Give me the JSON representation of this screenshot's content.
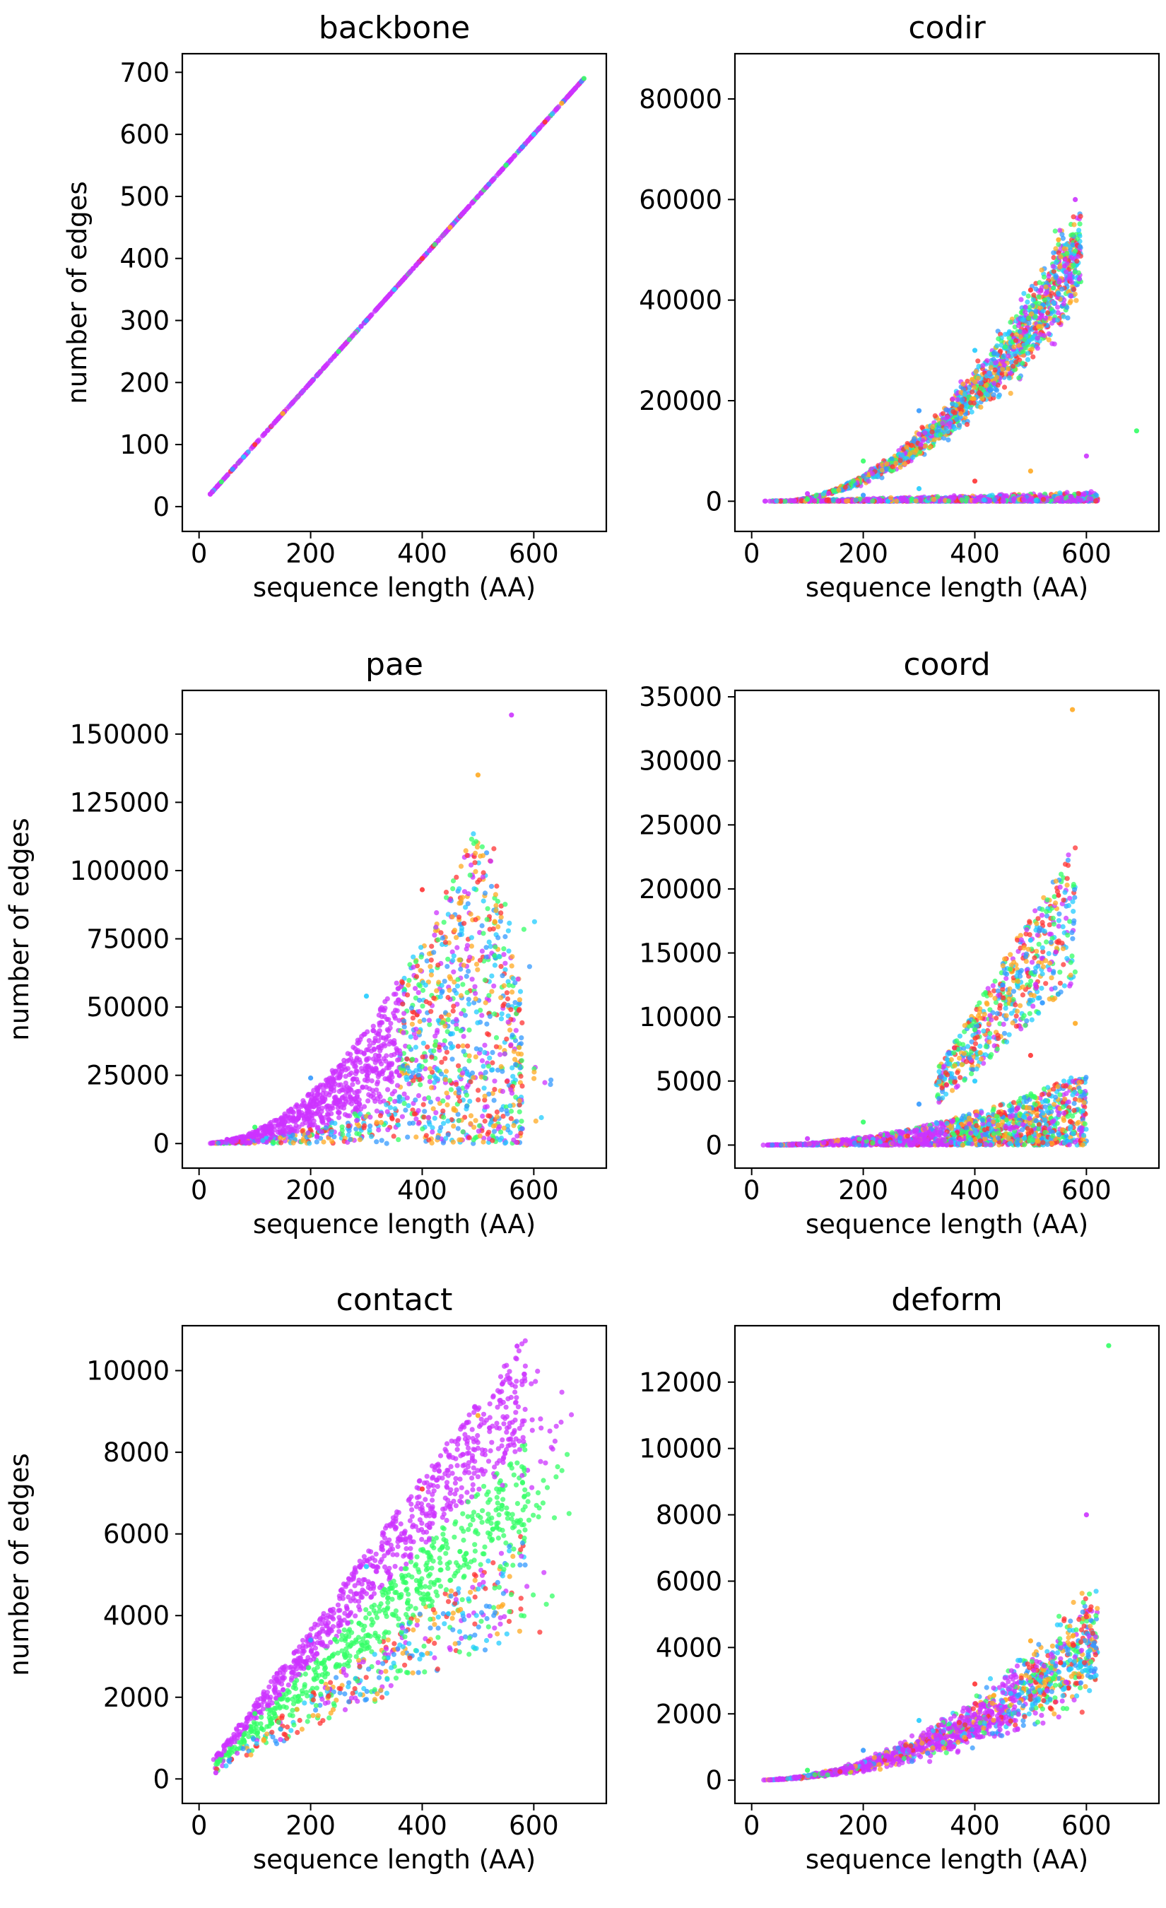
{
  "chart_data": [
    {
      "type": "scatter",
      "title": "backbone",
      "xlabel": "sequence length (AA)",
      "ylabel": "number of edges",
      "xlim": [
        -30,
        730
      ],
      "ylim": [
        -40,
        730
      ],
      "xticks": [
        0,
        200,
        400,
        600
      ],
      "yticks": [
        0,
        100,
        200,
        300,
        400,
        500,
        600,
        700
      ],
      "grid": false,
      "legend": "none",
      "colors": [
        "#cc33ff",
        "#33ff66",
        "#3399ff",
        "#22ccff",
        "#ff3333",
        "#ffaa22"
      ],
      "series": [
        {
          "x": [
            20,
            40,
            60,
            80,
            100,
            150,
            200,
            250,
            300,
            350,
            400,
            450,
            500,
            550,
            580,
            600,
            620,
            650,
            670,
            690
          ],
          "y": [
            20,
            40,
            60,
            80,
            100,
            150,
            200,
            250,
            300,
            350,
            400,
            450,
            500,
            550,
            580,
            600,
            620,
            650,
            670,
            690
          ]
        }
      ]
    },
    {
      "type": "scatter",
      "title": "codir",
      "xlabel": "sequence length (AA)",
      "ylabel": "",
      "xlim": [
        -30,
        730
      ],
      "ylim": [
        -6000,
        89000
      ],
      "xticks": [
        0,
        200,
        400,
        600
      ],
      "yticks": [
        0,
        20000,
        40000,
        60000,
        80000
      ],
      "grid": false,
      "legend": "none",
      "colors": [
        "#cc33ff",
        "#33ff66",
        "#3399ff",
        "#22ccff",
        "#ff3333",
        "#ffaa22"
      ],
      "series": [
        {
          "x": [
            100,
            200,
            300,
            400,
            500,
            550,
            580
          ],
          "y": [
            1500,
            8000,
            18000,
            30000,
            42000,
            52000,
            60000
          ]
        },
        {
          "x": [
            100,
            200,
            300,
            400,
            500,
            600,
            690
          ],
          "y": [
            400,
            1200,
            2500,
            4000,
            6000,
            9000,
            14000
          ]
        }
      ]
    },
    {
      "type": "scatter",
      "title": "pae",
      "xlabel": "sequence length (AA)",
      "ylabel": "number of edges",
      "xlim": [
        -30,
        730
      ],
      "ylim": [
        -9000,
        166000
      ],
      "xticks": [
        0,
        200,
        400,
        600
      ],
      "yticks": [
        0,
        25000,
        50000,
        75000,
        100000,
        125000,
        150000
      ],
      "grid": false,
      "legend": "none",
      "colors": [
        "#cc33ff",
        "#33ff66",
        "#3399ff",
        "#22ccff",
        "#ff3333",
        "#ffaa22"
      ],
      "series": [
        {
          "x": [
            50,
            100,
            200,
            300,
            400,
            500,
            560
          ],
          "y": [
            1500,
            6000,
            24000,
            54000,
            93000,
            135000,
            157000
          ]
        }
      ]
    },
    {
      "type": "scatter",
      "title": "coord",
      "xlabel": "sequence length (AA)",
      "ylabel": "",
      "xlim": [
        -30,
        730
      ],
      "ylim": [
        -1800,
        35500
      ],
      "xticks": [
        0,
        200,
        400,
        600
      ],
      "yticks": [
        0,
        5000,
        10000,
        15000,
        20000,
        25000,
        30000,
        35000
      ],
      "grid": false,
      "legend": "none",
      "colors": [
        "#cc33ff",
        "#33ff66",
        "#3399ff",
        "#22ccff",
        "#ff3333",
        "#ffaa22"
      ],
      "series": [
        {
          "x": [
            100,
            200,
            300,
            400,
            500,
            580
          ],
          "y": [
            500,
            1800,
            3200,
            5000,
            7000,
            9500
          ]
        },
        {
          "x": [
            400,
            450,
            500,
            550,
            575
          ],
          "y": [
            9000,
            12500,
            16000,
            19500,
            34000
          ]
        }
      ]
    },
    {
      "type": "scatter",
      "title": "contact",
      "xlabel": "sequence length (AA)",
      "ylabel": "number of edges",
      "xlim": [
        -30,
        730
      ],
      "ylim": [
        -600,
        11100
      ],
      "xticks": [
        0,
        200,
        400,
        600
      ],
      "yticks": [
        0,
        2000,
        4000,
        6000,
        8000,
        10000
      ],
      "grid": false,
      "legend": "none",
      "colors": [
        "#cc33ff",
        "#33ff66",
        "#3399ff",
        "#22ccff",
        "#ff3333",
        "#ffaa22"
      ],
      "series": [
        {
          "x": [
            30,
            100,
            200,
            300,
            400,
            500,
            570
          ],
          "y": [
            150,
            1600,
            3400,
            5200,
            7100,
            8900,
            10600
          ]
        }
      ]
    },
    {
      "type": "scatter",
      "title": "deform",
      "xlabel": "sequence length (AA)",
      "ylabel": "",
      "xlim": [
        -30,
        730
      ],
      "ylim": [
        -700,
        13700
      ],
      "xticks": [
        0,
        200,
        400,
        600
      ],
      "yticks": [
        0,
        2000,
        4000,
        6000,
        8000,
        10000,
        12000
      ],
      "grid": false,
      "legend": "none",
      "colors": [
        "#cc33ff",
        "#33ff66",
        "#3399ff",
        "#22ccff",
        "#ff3333",
        "#ffaa22"
      ],
      "series": [
        {
          "x": [
            50,
            100,
            200,
            300,
            400,
            500,
            600,
            640
          ],
          "y": [
            50,
            300,
            900,
            1800,
            2900,
            4200,
            8000,
            13100
          ]
        }
      ]
    }
  ]
}
